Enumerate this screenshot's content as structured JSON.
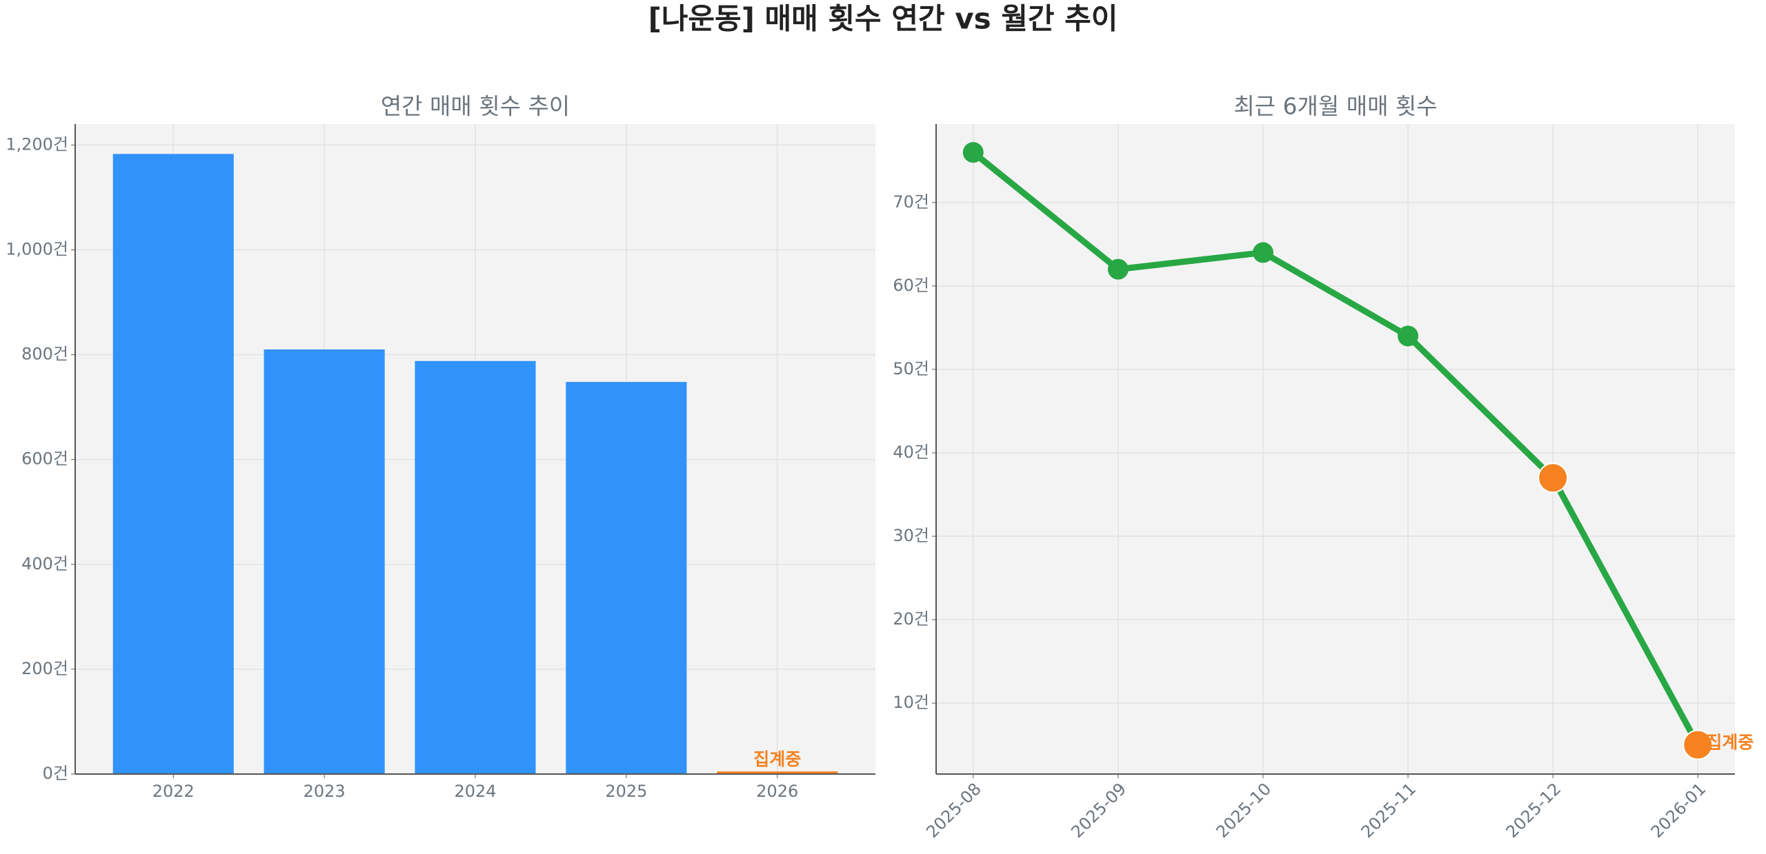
{
  "title": "[나운동] 매매 횟수 연간 vs 월간 추이",
  "chart_data": [
    {
      "type": "bar",
      "title": "연간 매매 횟수 추이",
      "categories": [
        "2022",
        "2023",
        "2024",
        "2025",
        "2026"
      ],
      "values": [
        1183,
        810,
        788,
        748,
        5
      ],
      "colors": [
        "#3192fb",
        "#3192fb",
        "#3192fb",
        "#3192fb",
        "#f5821f"
      ],
      "ylim": [
        0,
        1240
      ],
      "yticks": [
        {
          "value": 0,
          "label": "0건"
        },
        {
          "value": 200,
          "label": "200건"
        },
        {
          "value": 400,
          "label": "400건"
        },
        {
          "value": 600,
          "label": "600건"
        },
        {
          "value": 800,
          "label": "800건"
        },
        {
          "value": 1000,
          "label": "1,000건"
        },
        {
          "value": 1200,
          "label": "1,200건"
        }
      ],
      "grid": true,
      "annotations": [
        {
          "x": "2026",
          "text": "집계중",
          "color": "#f5821f"
        }
      ]
    },
    {
      "type": "line",
      "title": "최근 6개월 매매 횟수",
      "categories": [
        "2025-08",
        "2025-09",
        "2025-10",
        "2025-11",
        "2025-12",
        "2026-01"
      ],
      "values": [
        76,
        62,
        64,
        54,
        37,
        5
      ],
      "color": "#28a745",
      "marker_colors": [
        "#28a745",
        "#28a745",
        "#28a745",
        "#28a745",
        "#f5821f",
        "#f5821f"
      ],
      "ylim": [
        1.5,
        79.4
      ],
      "yticks": [
        {
          "value": 10,
          "label": "10건"
        },
        {
          "value": 20,
          "label": "20건"
        },
        {
          "value": 30,
          "label": "30건"
        },
        {
          "value": 40,
          "label": "40건"
        },
        {
          "value": 50,
          "label": "50건"
        },
        {
          "value": 60,
          "label": "60건"
        },
        {
          "value": 70,
          "label": "70건"
        }
      ],
      "grid": true,
      "annotations": [
        {
          "x": "2026-01",
          "text": "집계중",
          "color": "#f5821f"
        }
      ]
    }
  ]
}
